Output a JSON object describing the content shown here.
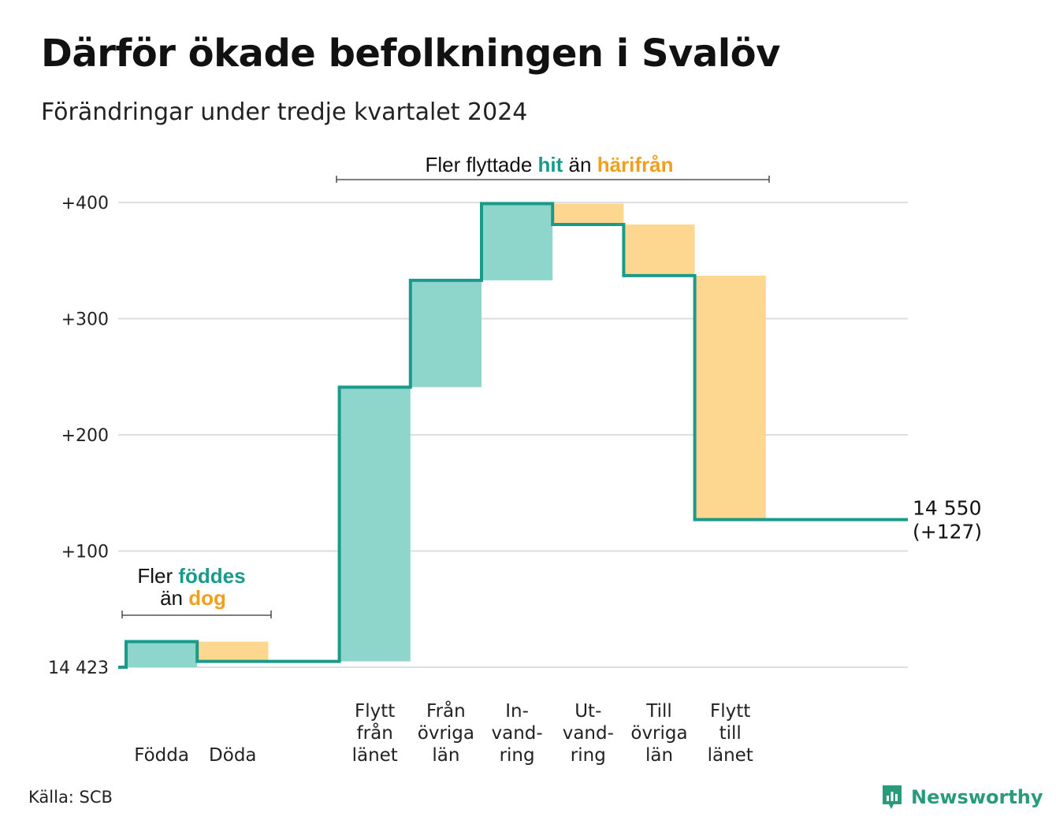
{
  "title": "Därför ökade befolkningen i Svalöv",
  "subtitle": "Förändringar under tredje kvartalet 2024",
  "source": "Källa: SCB",
  "brand": {
    "name": "Newsworthy",
    "icon": "newsworthy-logo-icon",
    "color": "#2a9a7d"
  },
  "colors": {
    "increase": "#8ed6cc",
    "decrease": "#fdd78f",
    "line": "#1a9a8b",
    "increase_text": "#1a9a8b",
    "decrease_text": "#f0a01e"
  },
  "annotations": {
    "births": {
      "line1_prefix": "Fler ",
      "line1_highlight": "föddes",
      "line2_prefix": "än ",
      "line2_highlight": "dog"
    },
    "migration": {
      "prefix": "Fler flyttade ",
      "highlight_in": "hit",
      "middle": " än ",
      "highlight_out": "härifrån"
    }
  },
  "chart_data": {
    "type": "waterfall",
    "base_value": 14423,
    "y_tick_labels": [
      "14 423",
      "+100",
      "+200",
      "+300",
      "+400"
    ],
    "y_ticks": [
      0,
      100,
      200,
      300,
      400
    ],
    "ylim": [
      0,
      400
    ],
    "grid": true,
    "steps": [
      {
        "label": [
          "Födda"
        ],
        "change": 22,
        "kind": "increase"
      },
      {
        "label": [
          "Döda"
        ],
        "change": -17,
        "kind": "decrease"
      },
      {
        "label": [],
        "change": 0,
        "kind": "gap"
      },
      {
        "label": [
          "Flytt",
          "från",
          "länet"
        ],
        "change": 236,
        "kind": "increase"
      },
      {
        "label": [
          "Från",
          "övriga",
          "län"
        ],
        "change": 92,
        "kind": "increase"
      },
      {
        "label": [
          "In-",
          "vand-",
          "ring"
        ],
        "change": 66,
        "kind": "increase"
      },
      {
        "label": [
          "Ut-",
          "vand-",
          "ring"
        ],
        "change": -18,
        "kind": "decrease"
      },
      {
        "label": [
          "Till",
          "övriga",
          "län"
        ],
        "change": -44,
        "kind": "decrease"
      },
      {
        "label": [
          "Flytt",
          "till",
          "länet"
        ],
        "change": -210,
        "kind": "decrease"
      }
    ],
    "end_label": {
      "value": "14 550",
      "change": "(+127)"
    }
  }
}
